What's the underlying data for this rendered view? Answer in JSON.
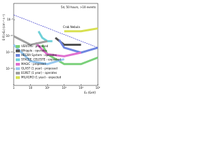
{
  "chart_data": {
    "type": "line",
    "log_x": true,
    "log_y": true,
    "note": "5σ, 50 hours, >10 events",
    "y_label": "E·F(>E₀) (cm⁻² s⁻¹)",
    "x_label": "E₀ (GeV)",
    "xlim": [
      1,
      100000
    ],
    "xticks": [
      {
        "value": 1,
        "label": "1"
      },
      {
        "value": 10,
        "label": "10"
      },
      {
        "value": 100,
        "label": "10²"
      },
      {
        "value": 1000,
        "label": "10³"
      },
      {
        "value": 10000,
        "label": "10⁴"
      },
      {
        "value": 100000,
        "label": "10⁵"
      }
    ],
    "ylim": [
      1e-13,
      1e-08
    ],
    "yticks": [
      {
        "value": 1e-12,
        "label": "10⁻¹²"
      },
      {
        "value": 1e-11,
        "label": "10⁻¹¹"
      },
      {
        "value": 1e-10,
        "label": "10⁻¹⁰"
      },
      {
        "value": 1e-09,
        "label": "10⁻⁹"
      }
    ],
    "reference": {
      "name": "Crab Nebula",
      "color": "#3a3acc",
      "x": [
        1,
        100000
      ],
      "values": [
        2e-09,
        2e-11
      ]
    },
    "series": [
      {
        "name": "VERITAS - proposed",
        "color": "#7ad07a",
        "x": [
          50,
          100,
          1000,
          10000,
          100000
        ],
        "values": [
          3e-11,
          8e-12,
          2e-12,
          2e-12,
          5e-12
        ]
      },
      {
        "name": "Whipple - operates",
        "color": "#505050",
        "x": [
          300,
          1000,
          10000
        ],
        "values": [
          8e-11,
          3e-11,
          3e-11
        ]
      },
      {
        "name": "HEGRA System - operates",
        "color": "#6f86e0",
        "x": [
          500,
          1000,
          10000,
          100000
        ],
        "values": [
          6e-11,
          2e-11,
          1e-11,
          2e-11
        ]
      },
      {
        "name": "STACEE, CELESTE - expected",
        "color": "#6fd0d8",
        "x": [
          30,
          50,
          100,
          200
        ],
        "values": [
          2e-10,
          8e-11,
          5e-11,
          5e-11
        ]
      },
      {
        "name": "MAGIC - proposed",
        "color": "#e070d0",
        "x": [
          20,
          50,
          100,
          1000,
          10000
        ],
        "values": [
          4e-11,
          1.5e-11,
          8e-12,
          6e-12,
          1e-11
        ]
      },
      {
        "name": "GLAST (1 year) - proposed",
        "color": "#98c8f0",
        "x": [
          1,
          10,
          100,
          1000
        ],
        "values": [
          3e-11,
          3e-12,
          2e-12,
          4e-12
        ]
      },
      {
        "name": "EGRET (1 year) - operates",
        "color": "#a0a0a0",
        "x": [
          1,
          10,
          100
        ],
        "values": [
          1e-10,
          3e-11,
          5e-11
        ]
      },
      {
        "name": "MILAGRO (1 year) - expected",
        "color": "#d8e050",
        "x": [
          1000,
          10000,
          100000
        ],
        "values": [
          2e-10,
          2e-10,
          3e-10
        ]
      }
    ]
  }
}
